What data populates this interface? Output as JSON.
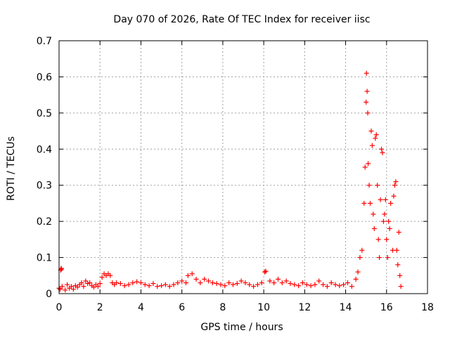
{
  "chart_data": {
    "type": "scatter",
    "title": "Day 070 of 2026, Rate Of TEC Index for receiver iisc",
    "xlabel": "GPS time / hours",
    "ylabel": "ROTI / TECUs",
    "xlim": [
      0,
      18
    ],
    "ylim": [
      0,
      0.7
    ],
    "xticks": [
      0,
      2,
      4,
      6,
      8,
      10,
      12,
      14,
      16,
      18
    ],
    "yticks": [
      0,
      0.1,
      0.2,
      0.3,
      0.4,
      0.5,
      0.6,
      0.7
    ],
    "xtick_labels": [
      "0",
      "2",
      "4",
      "6",
      "8",
      "10",
      "12",
      "14",
      "16",
      "18"
    ],
    "ytick_labels": [
      "0",
      "0.1",
      "0.2",
      "0.3",
      "0.4",
      "0.5",
      "0.6",
      "0.7"
    ],
    "grid": true,
    "marker": "+",
    "series": [
      {
        "name": "ROTI",
        "color": "#ff0000",
        "points": [
          [
            0.0,
            0.015
          ],
          [
            0.05,
            0.012
          ],
          [
            0.08,
            0.065
          ],
          [
            0.1,
            0.07
          ],
          [
            0.12,
            0.068
          ],
          [
            0.15,
            0.02
          ],
          [
            0.3,
            0.01
          ],
          [
            0.4,
            0.025
          ],
          [
            0.5,
            0.015
          ],
          [
            0.6,
            0.02
          ],
          [
            0.7,
            0.012
          ],
          [
            0.8,
            0.022
          ],
          [
            0.9,
            0.018
          ],
          [
            1.0,
            0.025
          ],
          [
            1.1,
            0.03
          ],
          [
            1.2,
            0.02
          ],
          [
            1.3,
            0.035
          ],
          [
            1.4,
            0.028
          ],
          [
            1.5,
            0.03
          ],
          [
            1.6,
            0.022
          ],
          [
            1.7,
            0.018
          ],
          [
            1.8,
            0.025
          ],
          [
            1.9,
            0.02
          ],
          [
            2.0,
            0.028
          ],
          [
            2.1,
            0.045
          ],
          [
            2.2,
            0.055
          ],
          [
            2.3,
            0.05
          ],
          [
            2.4,
            0.055
          ],
          [
            2.5,
            0.05
          ],
          [
            2.6,
            0.03
          ],
          [
            2.7,
            0.025
          ],
          [
            2.8,
            0.03
          ],
          [
            3.0,
            0.028
          ],
          [
            3.2,
            0.022
          ],
          [
            3.4,
            0.025
          ],
          [
            3.6,
            0.03
          ],
          [
            3.8,
            0.033
          ],
          [
            4.0,
            0.03
          ],
          [
            4.2,
            0.025
          ],
          [
            4.4,
            0.022
          ],
          [
            4.6,
            0.028
          ],
          [
            4.8,
            0.02
          ],
          [
            5.0,
            0.022
          ],
          [
            5.2,
            0.025
          ],
          [
            5.4,
            0.02
          ],
          [
            5.6,
            0.025
          ],
          [
            5.8,
            0.03
          ],
          [
            6.0,
            0.035
          ],
          [
            6.2,
            0.03
          ],
          [
            6.3,
            0.05
          ],
          [
            6.5,
            0.055
          ],
          [
            6.7,
            0.04
          ],
          [
            6.9,
            0.03
          ],
          [
            7.1,
            0.04
          ],
          [
            7.3,
            0.035
          ],
          [
            7.5,
            0.03
          ],
          [
            7.7,
            0.028
          ],
          [
            7.9,
            0.025
          ],
          [
            8.1,
            0.022
          ],
          [
            8.3,
            0.03
          ],
          [
            8.5,
            0.025
          ],
          [
            8.7,
            0.028
          ],
          [
            8.9,
            0.035
          ],
          [
            9.1,
            0.03
          ],
          [
            9.3,
            0.025
          ],
          [
            9.5,
            0.02
          ],
          [
            9.7,
            0.025
          ],
          [
            9.9,
            0.03
          ],
          [
            10.05,
            0.06
          ],
          [
            10.1,
            0.062
          ],
          [
            10.3,
            0.035
          ],
          [
            10.5,
            0.03
          ],
          [
            10.7,
            0.04
          ],
          [
            10.9,
            0.03
          ],
          [
            11.1,
            0.035
          ],
          [
            11.3,
            0.028
          ],
          [
            11.5,
            0.025
          ],
          [
            11.7,
            0.022
          ],
          [
            11.9,
            0.03
          ],
          [
            12.1,
            0.025
          ],
          [
            12.3,
            0.022
          ],
          [
            12.5,
            0.025
          ],
          [
            12.7,
            0.035
          ],
          [
            12.9,
            0.025
          ],
          [
            13.1,
            0.02
          ],
          [
            13.3,
            0.03
          ],
          [
            13.5,
            0.025
          ],
          [
            13.7,
            0.022
          ],
          [
            13.9,
            0.025
          ],
          [
            14.1,
            0.03
          ],
          [
            14.3,
            0.02
          ],
          [
            14.5,
            0.04
          ],
          [
            14.6,
            0.06
          ],
          [
            14.7,
            0.1
          ],
          [
            14.8,
            0.12
          ],
          [
            14.9,
            0.25
          ],
          [
            14.95,
            0.35
          ],
          [
            15.0,
            0.53
          ],
          [
            15.02,
            0.61
          ],
          [
            15.05,
            0.56
          ],
          [
            15.08,
            0.5
          ],
          [
            15.1,
            0.36
          ],
          [
            15.15,
            0.3
          ],
          [
            15.2,
            0.25
          ],
          [
            15.25,
            0.45
          ],
          [
            15.3,
            0.41
          ],
          [
            15.35,
            0.22
          ],
          [
            15.4,
            0.18
          ],
          [
            15.45,
            0.43
          ],
          [
            15.5,
            0.44
          ],
          [
            15.55,
            0.3
          ],
          [
            15.6,
            0.15
          ],
          [
            15.65,
            0.1
          ],
          [
            15.7,
            0.26
          ],
          [
            15.75,
            0.4
          ],
          [
            15.8,
            0.39
          ],
          [
            15.85,
            0.2
          ],
          [
            15.9,
            0.22
          ],
          [
            15.95,
            0.26
          ],
          [
            16.0,
            0.15
          ],
          [
            16.05,
            0.1
          ],
          [
            16.1,
            0.2
          ],
          [
            16.15,
            0.18
          ],
          [
            16.2,
            0.25
          ],
          [
            16.3,
            0.12
          ],
          [
            16.35,
            0.27
          ],
          [
            16.4,
            0.3
          ],
          [
            16.45,
            0.31
          ],
          [
            16.5,
            0.12
          ],
          [
            16.55,
            0.08
          ],
          [
            16.6,
            0.17
          ],
          [
            16.65,
            0.05
          ],
          [
            16.7,
            0.02
          ]
        ]
      }
    ]
  }
}
